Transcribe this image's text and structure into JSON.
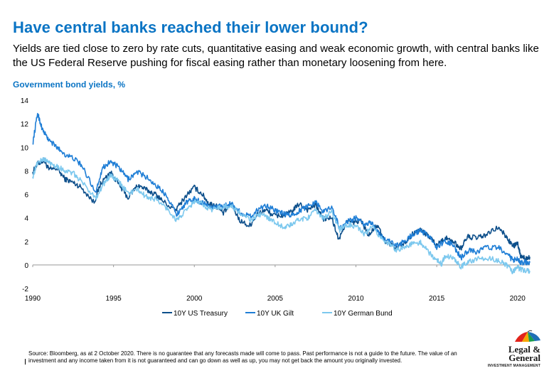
{
  "header": {
    "title": "Have central banks reached their lower bound?",
    "subtitle": "Yields are tied close to zero by rate cuts, quantitative easing and weak economic growth, with central banks like the US Federal Reserve pushing  for fiscal easing rather than monetary loosening from here."
  },
  "footnote": {
    "line1": "Source: Bloomberg, as at 2 October 2020. There is no guarantee that any forecasts made will come to pass. Past performance is not a guide to the future. The value of an",
    "line2": "investment and any income taken from it is not guaranteed and can go down as well as up, you may not get back the amount you originally invested."
  },
  "logo": {
    "line1": "Legal &",
    "line2": "General",
    "line3": "INVESTMENT MANAGEMENT",
    "icon": "umbrella-icon"
  },
  "colors": {
    "title": "#0a74c4",
    "us_treasury": "#0d4f8b",
    "uk_gilt": "#1f7ed6",
    "german_bund": "#7cc8ee",
    "axis": "#999999"
  },
  "chart_data": {
    "type": "line",
    "title": "",
    "ylabel": "Government bond yields, %",
    "xlabel": "",
    "xlim": [
      1990,
      2020.76
    ],
    "ylim": [
      -2,
      14
    ],
    "x_ticks": [
      "1990",
      "1995",
      "2000",
      "2005",
      "2010",
      "2015",
      "2020"
    ],
    "y_ticks": [
      "-2",
      "0",
      "2",
      "4",
      "6",
      "8",
      "10",
      "12",
      "14"
    ],
    "grid": false,
    "legend": "bottom",
    "series": [
      {
        "name": "10Y US Treasury",
        "points": [
          [
            1990.0,
            7.9
          ],
          [
            1990.3,
            8.6
          ],
          [
            1990.7,
            8.9
          ],
          [
            1991.0,
            8.1
          ],
          [
            1991.5,
            8.2
          ],
          [
            1992.0,
            7.3
          ],
          [
            1992.5,
            7.0
          ],
          [
            1993.0,
            6.6
          ],
          [
            1993.8,
            5.3
          ],
          [
            1994.2,
            6.9
          ],
          [
            1994.8,
            7.9
          ],
          [
            1995.3,
            6.9
          ],
          [
            1995.9,
            5.7
          ],
          [
            1996.5,
            6.8
          ],
          [
            1997.0,
            6.4
          ],
          [
            1997.6,
            6.0
          ],
          [
            1998.0,
            5.5
          ],
          [
            1998.8,
            4.6
          ],
          [
            1999.5,
            5.9
          ],
          [
            2000.0,
            6.6
          ],
          [
            2000.5,
            6.0
          ],
          [
            2000.9,
            5.2
          ],
          [
            2001.3,
            5.1
          ],
          [
            2001.8,
            4.4
          ],
          [
            2002.3,
            5.2
          ],
          [
            2002.8,
            3.8
          ],
          [
            2003.4,
            3.3
          ],
          [
            2003.9,
            4.3
          ],
          [
            2004.4,
            4.7
          ],
          [
            2004.9,
            4.2
          ],
          [
            2005.5,
            4.2
          ],
          [
            2006.0,
            4.5
          ],
          [
            2006.5,
            5.2
          ],
          [
            2007.0,
            4.7
          ],
          [
            2007.5,
            5.1
          ],
          [
            2008.0,
            3.9
          ],
          [
            2008.5,
            4.0
          ],
          [
            2008.95,
            2.1
          ],
          [
            2009.4,
            3.7
          ],
          [
            2009.9,
            3.6
          ],
          [
            2010.3,
            3.8
          ],
          [
            2010.8,
            2.5
          ],
          [
            2011.3,
            3.4
          ],
          [
            2011.8,
            2.0
          ],
          [
            2012.5,
            1.5
          ],
          [
            2013.0,
            1.9
          ],
          [
            2013.5,
            2.6
          ],
          [
            2013.95,
            3.0
          ],
          [
            2014.5,
            2.5
          ],
          [
            2015.0,
            1.7
          ],
          [
            2015.5,
            2.3
          ],
          [
            2016.0,
            2.0
          ],
          [
            2016.5,
            1.4
          ],
          [
            2016.9,
            2.4
          ],
          [
            2017.5,
            2.3
          ],
          [
            2018.0,
            2.5
          ],
          [
            2018.8,
            3.2
          ],
          [
            2019.3,
            2.4
          ],
          [
            2019.7,
            1.6
          ],
          [
            2020.0,
            1.8
          ],
          [
            2020.2,
            0.7
          ],
          [
            2020.5,
            0.6
          ],
          [
            2020.76,
            0.7
          ]
        ]
      },
      {
        "name": "10Y UK Gilt",
        "points": [
          [
            1990.0,
            10.3
          ],
          [
            1990.3,
            12.9
          ],
          [
            1990.6,
            11.5
          ],
          [
            1991.0,
            10.6
          ],
          [
            1991.5,
            10.0
          ],
          [
            1992.0,
            9.4
          ],
          [
            1992.6,
            9.0
          ],
          [
            1993.0,
            8.5
          ],
          [
            1993.9,
            6.2
          ],
          [
            1994.3,
            8.2
          ],
          [
            1994.8,
            8.8
          ],
          [
            1995.3,
            8.3
          ],
          [
            1995.9,
            7.3
          ],
          [
            1996.5,
            7.9
          ],
          [
            1997.0,
            7.5
          ],
          [
            1997.6,
            6.8
          ],
          [
            1998.3,
            5.9
          ],
          [
            1998.9,
            4.3
          ],
          [
            1999.5,
            5.3
          ],
          [
            2000.0,
            5.6
          ],
          [
            2000.5,
            5.3
          ],
          [
            2001.0,
            4.9
          ],
          [
            2001.6,
            5.0
          ],
          [
            2002.3,
            5.2
          ],
          [
            2002.9,
            4.4
          ],
          [
            2003.5,
            4.1
          ],
          [
            2004.0,
            4.8
          ],
          [
            2004.5,
            5.1
          ],
          [
            2005.0,
            4.6
          ],
          [
            2005.6,
            4.3
          ],
          [
            2006.0,
            4.2
          ],
          [
            2006.5,
            4.6
          ],
          [
            2007.0,
            5.0
          ],
          [
            2007.5,
            5.4
          ],
          [
            2008.0,
            4.5
          ],
          [
            2008.5,
            5.0
          ],
          [
            2009.0,
            3.1
          ],
          [
            2009.5,
            3.7
          ],
          [
            2010.0,
            4.0
          ],
          [
            2010.5,
            3.4
          ],
          [
            2011.0,
            3.6
          ],
          [
            2011.5,
            2.5
          ],
          [
            2012.0,
            2.1
          ],
          [
            2012.5,
            1.6
          ],
          [
            2013.0,
            2.0
          ],
          [
            2013.5,
            2.6
          ],
          [
            2014.0,
            2.9
          ],
          [
            2014.5,
            2.5
          ],
          [
            2015.0,
            1.5
          ],
          [
            2015.5,
            2.0
          ],
          [
            2016.0,
            1.7
          ],
          [
            2016.5,
            0.6
          ],
          [
            2017.0,
            1.3
          ],
          [
            2017.5,
            1.1
          ],
          [
            2018.0,
            1.5
          ],
          [
            2018.8,
            1.5
          ],
          [
            2019.5,
            0.7
          ],
          [
            2019.7,
            0.4
          ],
          [
            2020.0,
            0.6
          ],
          [
            2020.2,
            0.2
          ],
          [
            2020.5,
            0.2
          ],
          [
            2020.76,
            0.2
          ]
        ]
      },
      {
        "name": "10Y German Bund",
        "points": [
          [
            1990.0,
            7.5
          ],
          [
            1990.3,
            8.7
          ],
          [
            1990.7,
            9.0
          ],
          [
            1991.0,
            8.7
          ],
          [
            1991.5,
            8.4
          ],
          [
            1992.0,
            8.0
          ],
          [
            1992.5,
            7.8
          ],
          [
            1993.0,
            7.1
          ],
          [
            1993.9,
            5.7
          ],
          [
            1994.4,
            6.9
          ],
          [
            1994.8,
            7.6
          ],
          [
            1995.3,
            7.1
          ],
          [
            1995.9,
            6.1
          ],
          [
            1996.5,
            6.4
          ],
          [
            1997.0,
            5.8
          ],
          [
            1997.6,
            5.6
          ],
          [
            1998.3,
            4.8
          ],
          [
            1998.9,
            3.8
          ],
          [
            1999.5,
            4.6
          ],
          [
            2000.0,
            5.4
          ],
          [
            2000.5,
            5.2
          ],
          [
            2001.0,
            4.7
          ],
          [
            2001.6,
            4.9
          ],
          [
            2002.3,
            5.0
          ],
          [
            2002.9,
            4.3
          ],
          [
            2003.5,
            3.8
          ],
          [
            2004.0,
            4.3
          ],
          [
            2004.5,
            4.1
          ],
          [
            2005.0,
            3.6
          ],
          [
            2005.6,
            3.2
          ],
          [
            2006.0,
            3.4
          ],
          [
            2006.5,
            3.9
          ],
          [
            2007.0,
            4.0
          ],
          [
            2007.5,
            4.6
          ],
          [
            2008.0,
            4.0
          ],
          [
            2008.5,
            4.5
          ],
          [
            2009.0,
            3.0
          ],
          [
            2009.5,
            3.4
          ],
          [
            2010.0,
            3.3
          ],
          [
            2010.5,
            2.6
          ],
          [
            2011.0,
            3.2
          ],
          [
            2011.5,
            2.4
          ],
          [
            2012.0,
            1.8
          ],
          [
            2012.5,
            1.3
          ],
          [
            2013.0,
            1.5
          ],
          [
            2013.5,
            1.8
          ],
          [
            2014.0,
            1.9
          ],
          [
            2014.5,
            1.1
          ],
          [
            2015.0,
            0.4
          ],
          [
            2015.3,
            0.1
          ],
          [
            2015.5,
            0.8
          ],
          [
            2016.0,
            0.6
          ],
          [
            2016.5,
            -0.15
          ],
          [
            2017.0,
            0.3
          ],
          [
            2017.5,
            0.5
          ],
          [
            2018.0,
            0.6
          ],
          [
            2018.8,
            0.4
          ],
          [
            2019.3,
            0.0
          ],
          [
            2019.7,
            -0.6
          ],
          [
            2020.0,
            -0.2
          ],
          [
            2020.2,
            -0.4
          ],
          [
            2020.5,
            -0.5
          ],
          [
            2020.76,
            -0.5
          ]
        ]
      }
    ]
  }
}
